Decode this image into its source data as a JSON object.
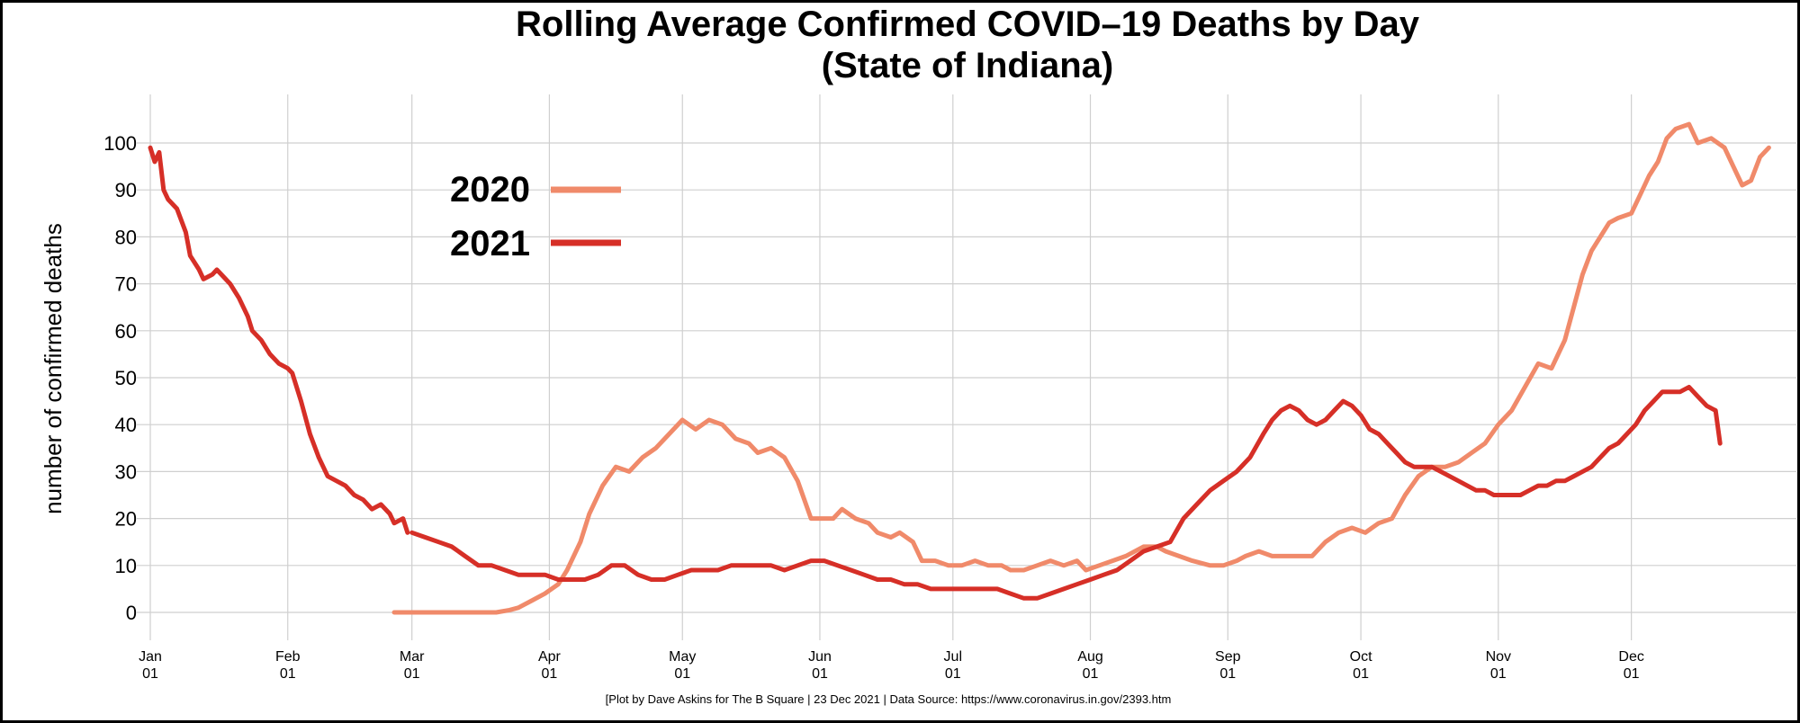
{
  "chart_data": {
    "type": "line",
    "title": "Rolling Average Confirmed COVID–19 Deaths by Day",
    "subtitle": "(State of Indiana)",
    "ylabel": "number of confirmed deaths",
    "xlabel": "",
    "ylim": [
      -5,
      105
    ],
    "yticks": [
      0,
      10,
      20,
      30,
      40,
      50,
      60,
      70,
      80,
      90,
      100
    ],
    "xlim": [
      1,
      366
    ],
    "xticks": [
      {
        "day": 1,
        "month": "Jan",
        "date": "01"
      },
      {
        "day": 32,
        "month": "Feb",
        "date": "01"
      },
      {
        "day": 60,
        "month": "Mar",
        "date": "01"
      },
      {
        "day": 91,
        "month": "Apr",
        "date": "01"
      },
      {
        "day": 121,
        "month": "May",
        "date": "01"
      },
      {
        "day": 152,
        "month": "Jun",
        "date": "01"
      },
      {
        "day": 182,
        "month": "Jul",
        "date": "01"
      },
      {
        "day": 213,
        "month": "Aug",
        "date": "01"
      },
      {
        "day": 244,
        "month": "Sep",
        "date": "01"
      },
      {
        "day": 274,
        "month": "Oct",
        "date": "01"
      },
      {
        "day": 305,
        "month": "Nov",
        "date": "01"
      },
      {
        "day": 335,
        "month": "Dec",
        "date": "01"
      }
    ],
    "grid": true,
    "legend_position": "top-left",
    "series": [
      {
        "name": "2020",
        "color": "#f08a6a",
        "points": [
          [
            56,
            0
          ],
          [
            60,
            0
          ],
          [
            65,
            0
          ],
          [
            70,
            0
          ],
          [
            75,
            0
          ],
          [
            79,
            0
          ],
          [
            82,
            0.5
          ],
          [
            84,
            1
          ],
          [
            87,
            2.5
          ],
          [
            90,
            4
          ],
          [
            93,
            6
          ],
          [
            95,
            9
          ],
          [
            98,
            15
          ],
          [
            100,
            21
          ],
          [
            103,
            27
          ],
          [
            106,
            31
          ],
          [
            109,
            30
          ],
          [
            112,
            33
          ],
          [
            115,
            35
          ],
          [
            118,
            38
          ],
          [
            121,
            41
          ],
          [
            124,
            39
          ],
          [
            127,
            41
          ],
          [
            130,
            40
          ],
          [
            133,
            37
          ],
          [
            136,
            36
          ],
          [
            138,
            34
          ],
          [
            141,
            35
          ],
          [
            144,
            33
          ],
          [
            147,
            28
          ],
          [
            150,
            20
          ],
          [
            153,
            20
          ],
          [
            155,
            20
          ],
          [
            157,
            22
          ],
          [
            160,
            20
          ],
          [
            163,
            19
          ],
          [
            165,
            17
          ],
          [
            168,
            16
          ],
          [
            170,
            17
          ],
          [
            173,
            15
          ],
          [
            175,
            11
          ],
          [
            178,
            11
          ],
          [
            181,
            10
          ],
          [
            184,
            10
          ],
          [
            187,
            11
          ],
          [
            190,
            10
          ],
          [
            193,
            10
          ],
          [
            195,
            9
          ],
          [
            198,
            9
          ],
          [
            201,
            10
          ],
          [
            204,
            11
          ],
          [
            207,
            10
          ],
          [
            210,
            11
          ],
          [
            212,
            9
          ],
          [
            215,
            10
          ],
          [
            218,
            11
          ],
          [
            221,
            12
          ],
          [
            225,
            14
          ],
          [
            228,
            14
          ],
          [
            230,
            13
          ],
          [
            233,
            12
          ],
          [
            236,
            11
          ],
          [
            240,
            10
          ],
          [
            243,
            10
          ],
          [
            246,
            11
          ],
          [
            248,
            12
          ],
          [
            251,
            13
          ],
          [
            254,
            12
          ],
          [
            257,
            12
          ],
          [
            260,
            12
          ],
          [
            263,
            12
          ],
          [
            266,
            15
          ],
          [
            269,
            17
          ],
          [
            272,
            18
          ],
          [
            275,
            17
          ],
          [
            278,
            19
          ],
          [
            281,
            20
          ],
          [
            284,
            25
          ],
          [
            287,
            29
          ],
          [
            290,
            31
          ],
          [
            293,
            31
          ],
          [
            296,
            32
          ],
          [
            299,
            34
          ],
          [
            302,
            36
          ],
          [
            305,
            40
          ],
          [
            308,
            43
          ],
          [
            311,
            48
          ],
          [
            314,
            53
          ],
          [
            317,
            52
          ],
          [
            320,
            58
          ],
          [
            322,
            65
          ],
          [
            324,
            72
          ],
          [
            326,
            77
          ],
          [
            328,
            80
          ],
          [
            330,
            83
          ],
          [
            332,
            84
          ],
          [
            335,
            85
          ],
          [
            337,
            89
          ],
          [
            339,
            93
          ],
          [
            341,
            96
          ],
          [
            343,
            101
          ],
          [
            345,
            103
          ],
          [
            348,
            104
          ],
          [
            350,
            100
          ],
          [
            353,
            101
          ],
          [
            356,
            99
          ],
          [
            358,
            95
          ],
          [
            360,
            91
          ],
          [
            362,
            92
          ],
          [
            364,
            97
          ],
          [
            366,
            99
          ]
        ]
      },
      {
        "name": "2021",
        "color": "#d62f27",
        "points": [
          [
            1,
            99
          ],
          [
            2,
            96
          ],
          [
            3,
            98
          ],
          [
            4,
            90
          ],
          [
            5,
            88
          ],
          [
            7,
            86
          ],
          [
            9,
            81
          ],
          [
            10,
            76
          ],
          [
            12,
            73
          ],
          [
            13,
            71
          ],
          [
            15,
            72
          ],
          [
            16,
            73
          ],
          [
            18,
            71
          ],
          [
            19,
            70
          ],
          [
            21,
            67
          ],
          [
            23,
            63
          ],
          [
            24,
            60
          ],
          [
            26,
            58
          ],
          [
            28,
            55
          ],
          [
            30,
            53
          ],
          [
            32,
            52
          ],
          [
            33,
            51
          ],
          [
            35,
            45
          ],
          [
            37,
            38
          ],
          [
            39,
            33
          ],
          [
            41,
            29
          ],
          [
            43,
            28
          ],
          [
            45,
            27
          ],
          [
            47,
            25
          ],
          [
            49,
            24
          ],
          [
            51,
            22
          ],
          [
            53,
            23
          ],
          [
            55,
            21
          ],
          [
            56,
            19
          ],
          [
            58,
            20
          ],
          [
            59,
            17
          ],
          [
            60,
            17
          ],
          [
            63,
            16
          ],
          [
            66,
            15
          ],
          [
            69,
            14
          ],
          [
            72,
            12
          ],
          [
            75,
            10
          ],
          [
            78,
            10
          ],
          [
            81,
            9
          ],
          [
            84,
            8
          ],
          [
            87,
            8
          ],
          [
            90,
            8
          ],
          [
            93,
            7
          ],
          [
            96,
            7
          ],
          [
            99,
            7
          ],
          [
            102,
            8
          ],
          [
            105,
            10
          ],
          [
            108,
            10
          ],
          [
            111,
            8
          ],
          [
            114,
            7
          ],
          [
            117,
            7
          ],
          [
            120,
            8
          ],
          [
            123,
            9
          ],
          [
            126,
            9
          ],
          [
            129,
            9
          ],
          [
            132,
            10
          ],
          [
            135,
            10
          ],
          [
            138,
            10
          ],
          [
            141,
            10
          ],
          [
            144,
            9
          ],
          [
            147,
            10
          ],
          [
            150,
            11
          ],
          [
            153,
            11
          ],
          [
            156,
            10
          ],
          [
            159,
            9
          ],
          [
            162,
            8
          ],
          [
            165,
            7
          ],
          [
            168,
            7
          ],
          [
            171,
            6
          ],
          [
            174,
            6
          ],
          [
            177,
            5
          ],
          [
            180,
            5
          ],
          [
            183,
            5
          ],
          [
            186,
            5
          ],
          [
            189,
            5
          ],
          [
            192,
            5
          ],
          [
            195,
            4
          ],
          [
            198,
            3
          ],
          [
            201,
            3
          ],
          [
            204,
            4
          ],
          [
            207,
            5
          ],
          [
            210,
            6
          ],
          [
            213,
            7
          ],
          [
            216,
            8
          ],
          [
            219,
            9
          ],
          [
            222,
            11
          ],
          [
            225,
            13
          ],
          [
            228,
            14
          ],
          [
            231,
            15
          ],
          [
            234,
            20
          ],
          [
            237,
            23
          ],
          [
            240,
            26
          ],
          [
            243,
            28
          ],
          [
            246,
            30
          ],
          [
            249,
            33
          ],
          [
            252,
            38
          ],
          [
            254,
            41
          ],
          [
            256,
            43
          ],
          [
            258,
            44
          ],
          [
            260,
            43
          ],
          [
            262,
            41
          ],
          [
            264,
            40
          ],
          [
            266,
            41
          ],
          [
            268,
            43
          ],
          [
            270,
            45
          ],
          [
            272,
            44
          ],
          [
            274,
            42
          ],
          [
            276,
            39
          ],
          [
            278,
            38
          ],
          [
            280,
            36
          ],
          [
            282,
            34
          ],
          [
            284,
            32
          ],
          [
            286,
            31
          ],
          [
            288,
            31
          ],
          [
            290,
            31
          ],
          [
            292,
            30
          ],
          [
            294,
            29
          ],
          [
            296,
            28
          ],
          [
            298,
            27
          ],
          [
            300,
            26
          ],
          [
            302,
            26
          ],
          [
            304,
            25
          ],
          [
            306,
            25
          ],
          [
            308,
            25
          ],
          [
            310,
            25
          ],
          [
            312,
            26
          ],
          [
            314,
            27
          ],
          [
            316,
            27
          ],
          [
            318,
            28
          ],
          [
            320,
            28
          ],
          [
            322,
            29
          ],
          [
            324,
            30
          ],
          [
            326,
            31
          ],
          [
            328,
            33
          ],
          [
            330,
            35
          ],
          [
            332,
            36
          ],
          [
            334,
            38
          ],
          [
            336,
            40
          ],
          [
            338,
            43
          ],
          [
            340,
            45
          ],
          [
            342,
            47
          ],
          [
            344,
            47
          ],
          [
            346,
            47
          ],
          [
            348,
            48
          ],
          [
            350,
            46
          ],
          [
            352,
            44
          ],
          [
            354,
            43
          ],
          [
            355,
            36
          ]
        ]
      }
    ]
  },
  "caption": "[Plot by Dave Askins for The B Square | 23 Dec 2021 | Data Source: https://www.coronavirus.in.gov/2393.htm"
}
